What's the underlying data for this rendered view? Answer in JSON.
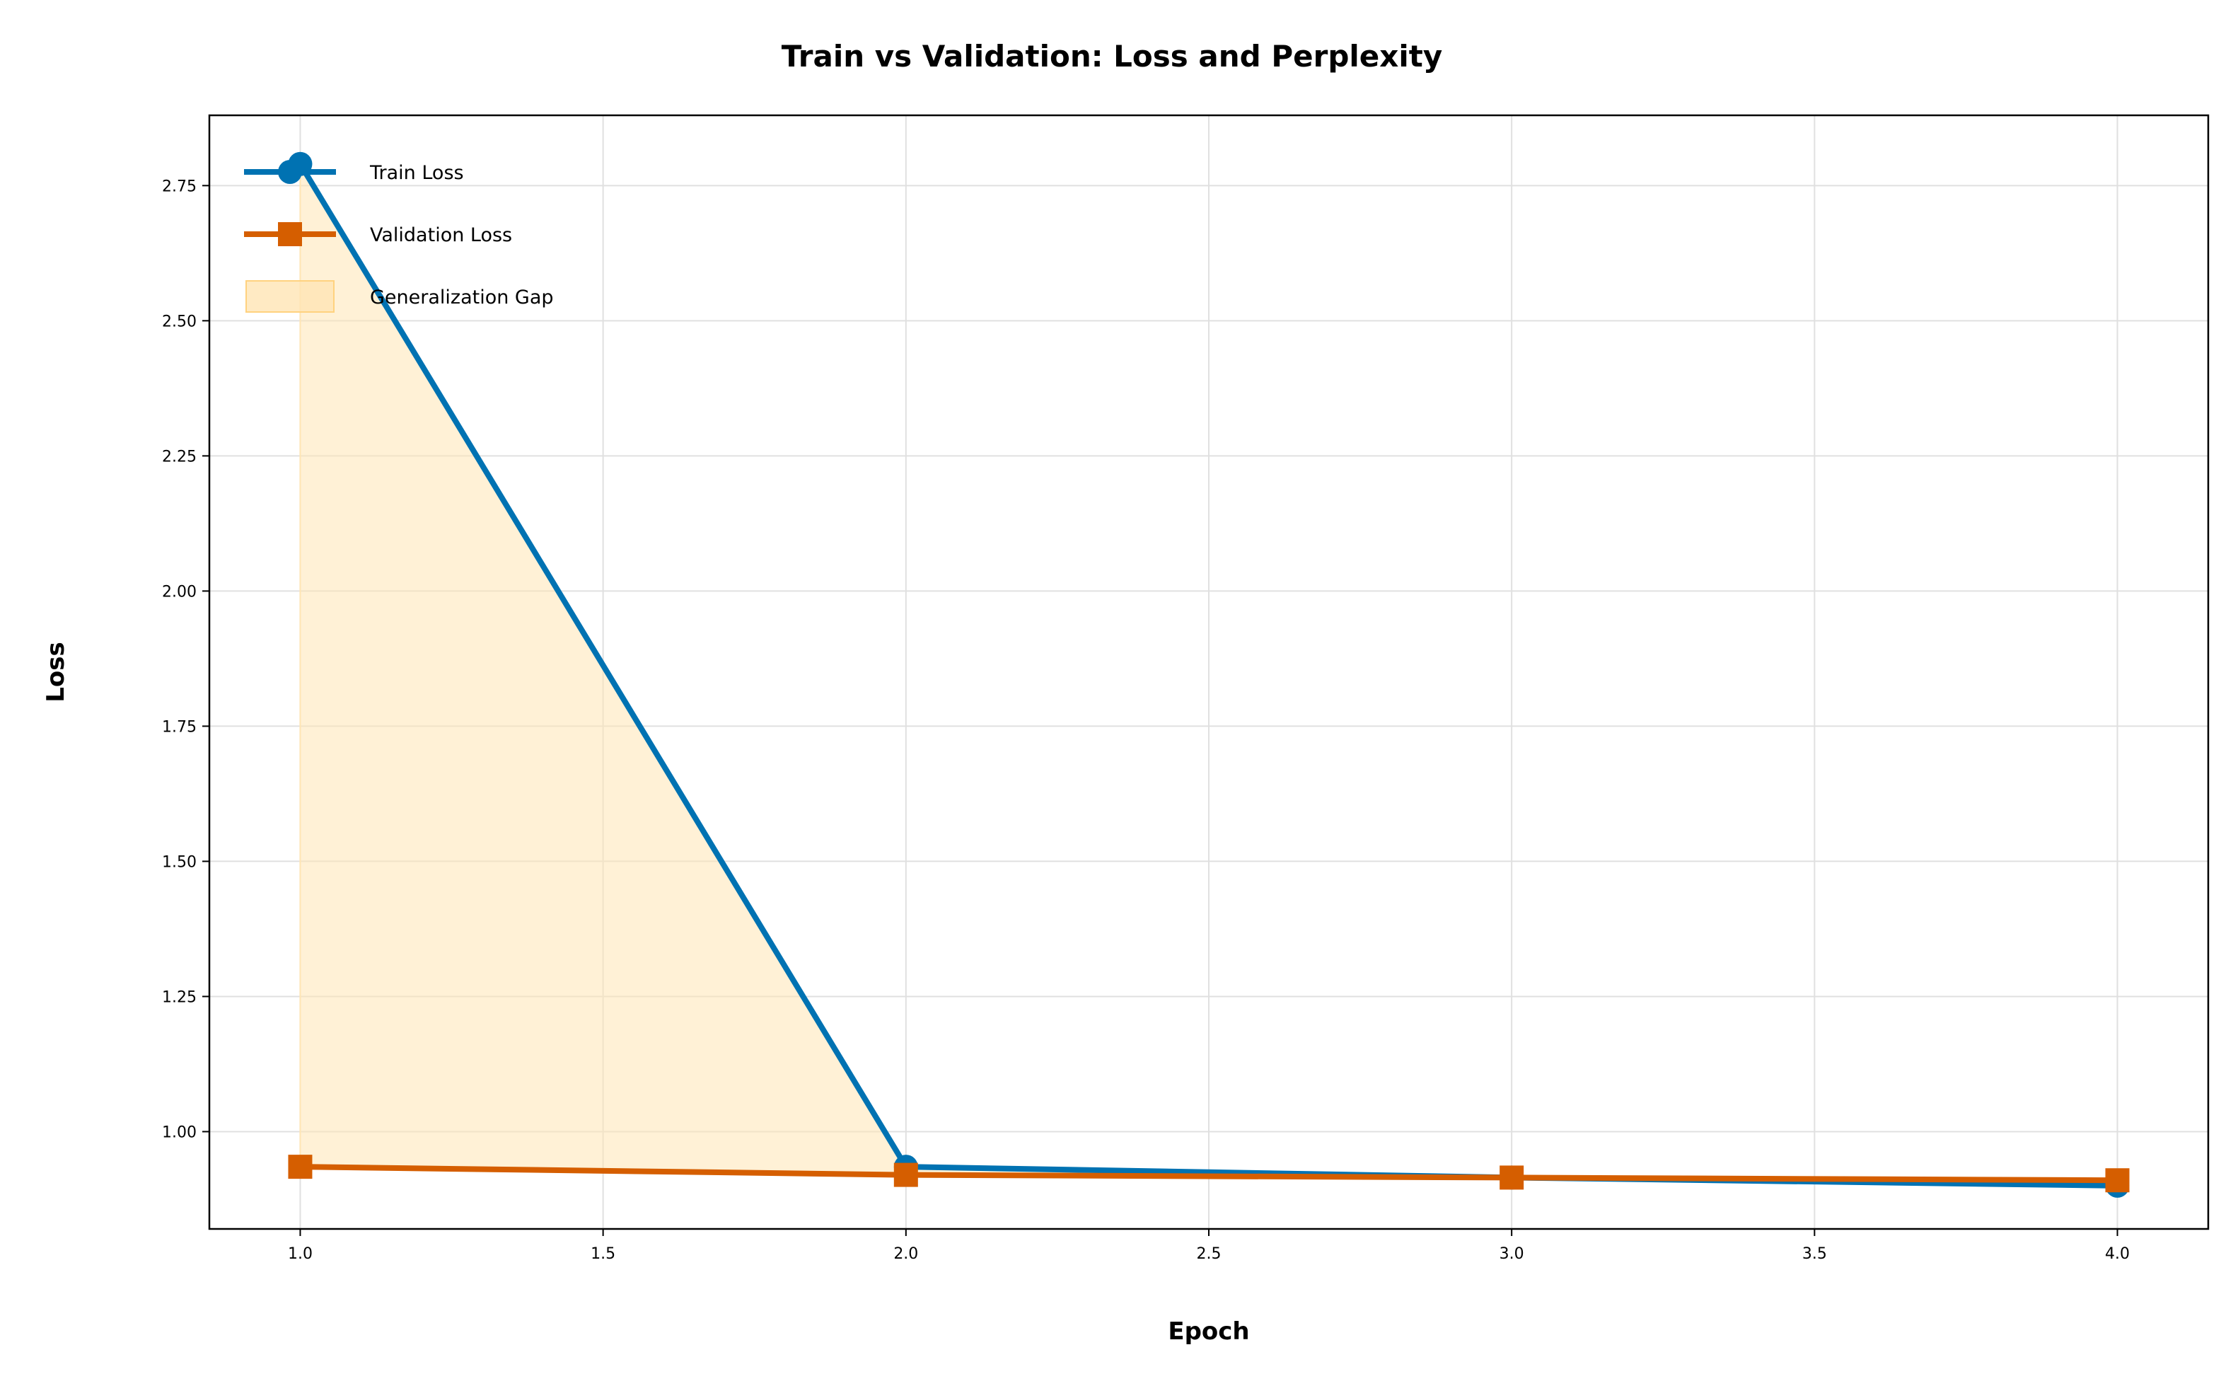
{
  "chart_data": {
    "type": "line",
    "title": "Train vs Validation: Loss and Perplexity",
    "xlabel": "Epoch",
    "ylabel": "Loss",
    "x": [
      1.0,
      2.0,
      3.0,
      4.0
    ],
    "series": [
      {
        "name": "Train Loss",
        "values": [
          2.79,
          0.935,
          0.915,
          0.9
        ],
        "color": "#0072B2",
        "marker": "circle"
      },
      {
        "name": "Validation Loss",
        "values": [
          0.935,
          0.92,
          0.915,
          0.91
        ],
        "color": "#D55E00",
        "marker": "square"
      }
    ],
    "fill_between": {
      "name": "Generalization Gap",
      "color": "#FFE5B4"
    },
    "xlim": [
      0.85,
      4.15
    ],
    "ylim": [
      0.82,
      2.88
    ],
    "xticks": [
      "1.0",
      "1.5",
      "2.0",
      "2.5",
      "3.0",
      "3.5",
      "4.0"
    ],
    "yticks": [
      "1.00",
      "1.25",
      "1.50",
      "1.75",
      "2.00",
      "2.25",
      "2.50",
      "2.75"
    ],
    "grid": true,
    "legend_position": "upper-left"
  }
}
